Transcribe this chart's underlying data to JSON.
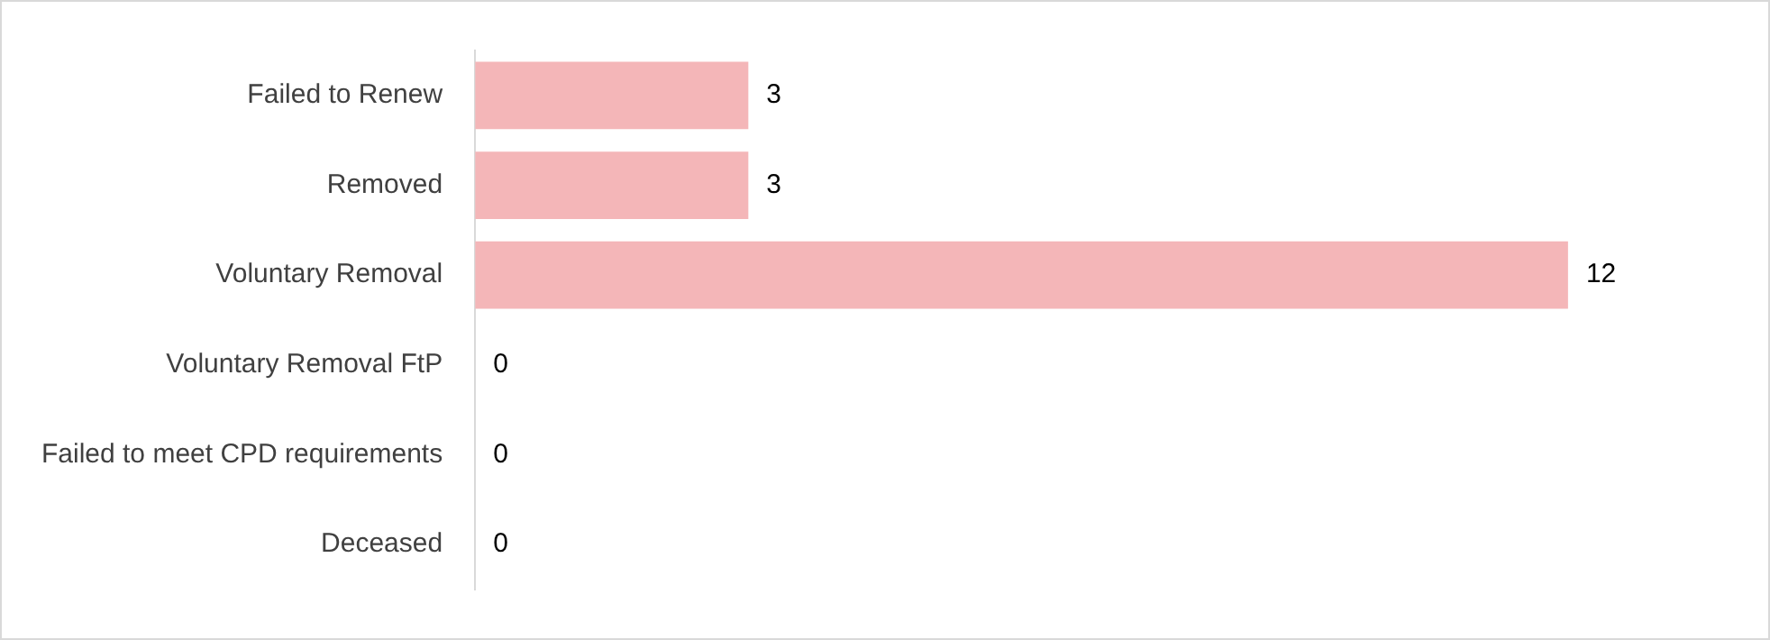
{
  "chart_data": {
    "type": "bar",
    "orientation": "horizontal",
    "categories": [
      "Failed to Renew",
      "Removed",
      "Voluntary Removal",
      "Voluntary Removal FtP",
      "Failed to meet CPD requirements",
      "Deceased"
    ],
    "values": [
      3,
      3,
      12,
      0,
      0,
      0
    ],
    "color": "#f4b6b8",
    "data_labels": true,
    "legend": false
  }
}
